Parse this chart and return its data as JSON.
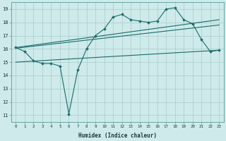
{
  "series1_x": [
    0,
    1,
    2,
    3,
    4,
    5,
    6,
    7,
    8,
    9,
    10,
    11,
    12,
    13,
    14,
    15,
    16,
    17,
    18,
    19,
    20,
    21,
    22,
    23
  ],
  "series1_y": [
    16.1,
    15.8,
    15.1,
    14.9,
    14.9,
    14.7,
    11.1,
    14.4,
    16.0,
    17.0,
    17.5,
    18.4,
    18.6,
    18.2,
    18.1,
    18.0,
    18.1,
    19.0,
    19.1,
    18.2,
    17.9,
    16.7,
    15.8,
    15.9
  ],
  "series2_x": [
    0,
    23
  ],
  "series2_y": [
    16.1,
    18.2
  ],
  "series3_x": [
    0,
    23
  ],
  "series3_y": [
    16.05,
    17.8
  ],
  "series4_x": [
    0,
    23
  ],
  "series4_y": [
    15.0,
    15.9
  ],
  "line_color": "#1a6b6b",
  "bg_color": "#ceeaea",
  "grid_color": "#aed0d0",
  "xlabel": "Humidex (Indice chaleur)",
  "xlim": [
    -0.5,
    23.5
  ],
  "ylim": [
    10.5,
    19.5
  ],
  "yticks": [
    11,
    12,
    13,
    14,
    15,
    16,
    17,
    18,
    19
  ],
  "xticks": [
    0,
    1,
    2,
    3,
    4,
    5,
    6,
    7,
    8,
    9,
    10,
    11,
    12,
    13,
    14,
    15,
    16,
    17,
    18,
    19,
    20,
    21,
    22,
    23
  ]
}
